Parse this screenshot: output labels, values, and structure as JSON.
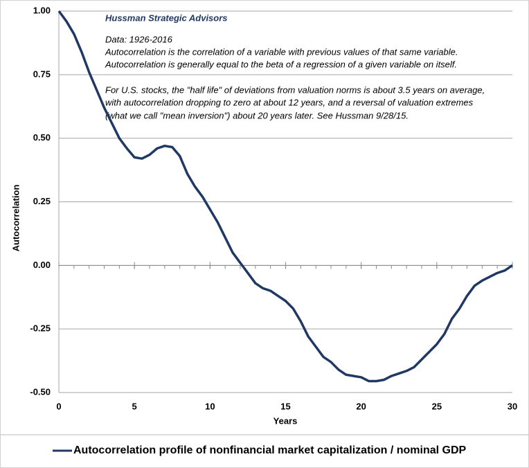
{
  "chart_data": {
    "type": "line",
    "annotations": [
      "Hussman Strategic Advisors",
      "Data: 1926-2016",
      "Autocorrelation is the correlation of a variable with previous values of  that same variable.",
      "Autocorrelation is generally equal to the beta of a regression of a given variable on itself.",
      "For U.S. stocks, the \"half life\" of deviations from valuation norms is about 3.5 years on average,",
      "with autocorrelation dropping to zero at about 12 years, and a reversal of valuation extremes",
      "(what we call \"mean inversion\") about 20 years later. See Hussman 9/28/15."
    ],
    "x_label": "Years",
    "y_label": "Autocorrelation",
    "x": [
      0,
      0.5,
      1,
      1.5,
      2,
      2.5,
      3,
      3.5,
      4,
      4.5,
      5,
      5.5,
      6,
      6.5,
      7,
      7.5,
      8,
      8.5,
      9,
      9.5,
      10,
      10.5,
      11,
      11.5,
      12,
      12.5,
      13,
      13.5,
      14,
      14.5,
      15,
      15.5,
      16,
      16.5,
      17,
      17.5,
      18,
      18.5,
      19,
      19.5,
      20,
      20.5,
      21,
      21.5,
      22,
      22.5,
      23,
      23.5,
      24,
      24.5,
      25,
      25.5,
      26,
      26.5,
      27,
      27.5,
      28,
      28.5,
      29,
      29.5,
      30
    ],
    "series": [
      {
        "name": "Autocorrelation profile of nonfinancial market capitalization / nominal GDP",
        "color": "#1f3864",
        "values": [
          1.0,
          0.96,
          0.91,
          0.84,
          0.76,
          0.69,
          0.62,
          0.56,
          0.5,
          0.46,
          0.425,
          0.42,
          0.435,
          0.46,
          0.47,
          0.465,
          0.43,
          0.36,
          0.31,
          0.27,
          0.22,
          0.17,
          0.11,
          0.05,
          0.01,
          -0.03,
          -0.07,
          -0.09,
          -0.1,
          -0.12,
          -0.14,
          -0.17,
          -0.22,
          -0.28,
          -0.32,
          -0.36,
          -0.38,
          -0.41,
          -0.43,
          -0.435,
          -0.44,
          -0.455,
          -0.455,
          -0.45,
          -0.435,
          -0.425,
          -0.415,
          -0.4,
          -0.37,
          -0.34,
          -0.31,
          -0.27,
          -0.21,
          -0.17,
          -0.12,
          -0.08,
          -0.06,
          -0.045,
          -0.03,
          -0.02,
          0.0
        ]
      }
    ],
    "xlim": [
      0,
      30
    ],
    "xticks": [
      0,
      5,
      10,
      15,
      20,
      25,
      30
    ],
    "ylim": [
      -0.5,
      1.0
    ],
    "yticks": [
      {
        "value": -0.5,
        "label": "-0.50"
      },
      {
        "value": -0.25,
        "label": "-0.25"
      },
      {
        "value": 0,
        "label": "0.00"
      },
      {
        "value": 0.25,
        "label": "0.25"
      },
      {
        "value": 0.5,
        "label": "0.50"
      },
      {
        "value": 0.75,
        "label": "0.75"
      },
      {
        "value": 1.0,
        "label": "1.00"
      }
    ],
    "grid": true,
    "legend": "bottom"
  }
}
